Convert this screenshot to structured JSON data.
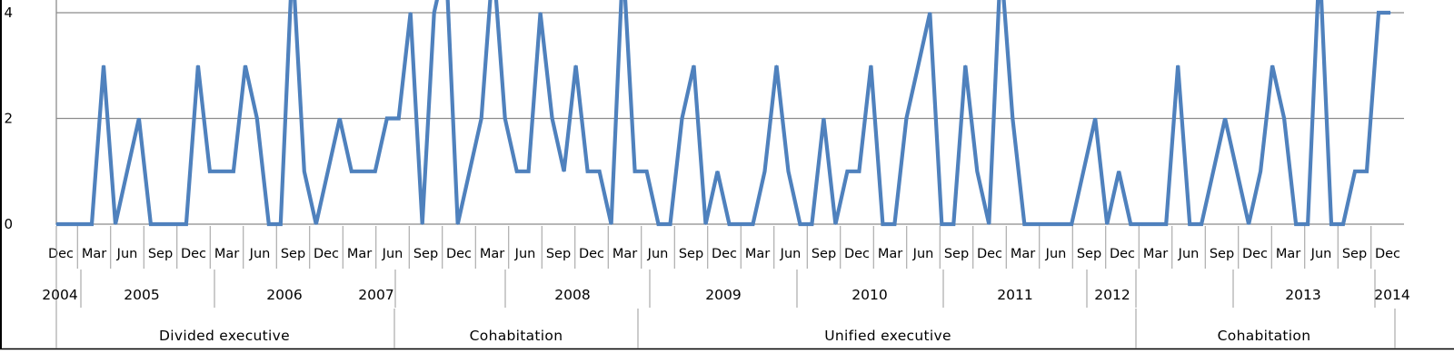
{
  "chart_data": {
    "type": "line",
    "series_color": "#4F81BD",
    "grid": true,
    "grid_color": "#8C8C8C",
    "ylim": [
      0,
      4
    ],
    "yticks": [
      "0",
      "2",
      "4"
    ],
    "values": [
      0,
      0,
      0,
      0,
      3,
      0,
      1,
      2,
      0,
      0,
      0,
      0,
      3,
      1,
      1,
      1,
      3,
      2,
      0,
      0,
      5,
      1,
      0,
      1,
      2,
      1,
      1,
      1,
      2,
      2,
      4,
      0,
      4,
      5,
      0,
      1,
      2,
      5,
      2,
      1,
      1,
      4,
      2,
      1,
      3,
      1,
      1,
      0,
      5,
      1,
      1,
      0,
      0,
      2,
      3,
      0,
      1,
      0,
      0,
      0,
      1,
      3,
      1,
      0,
      0,
      2,
      0,
      1,
      1,
      3,
      0,
      0,
      2,
      3,
      4,
      0,
      0,
      3,
      1,
      0,
      5,
      2,
      0,
      0,
      0,
      0,
      0,
      1,
      2,
      0,
      1,
      0,
      0,
      0,
      0,
      3,
      0,
      0,
      1,
      2,
      1,
      0,
      1,
      3,
      2,
      0,
      0,
      5,
      0,
      0,
      1,
      1,
      4,
      4
    ],
    "month_ticks": [
      "Dec",
      "Mar",
      "Jun",
      "Sep",
      "Dec",
      "Mar",
      "Jun",
      "Sep",
      "Dec",
      "Mar",
      "Jun",
      "Sep",
      "Dec",
      "Mar",
      "Jun",
      "Sep",
      "Dec",
      "Mar",
      "Jun",
      "Sep",
      "Dec",
      "Mar",
      "Jun",
      "Sep",
      "Dec",
      "Mar",
      "Jun",
      "Sep",
      "Dec",
      "Mar",
      "Jun",
      "Sep",
      "Dec",
      "Mar",
      "Jun",
      "Sep",
      "Dec",
      "Mar",
      "Jun",
      "Sep",
      "Dec"
    ],
    "years": [
      "2004",
      "2005",
      "2006",
      "2007",
      "2008",
      "2009",
      "2010",
      "2011",
      "2012",
      "2013",
      "2014"
    ],
    "regimes": [
      "Divided executive",
      "Cohabitation",
      "Unified executive",
      "Cohabitation"
    ]
  }
}
